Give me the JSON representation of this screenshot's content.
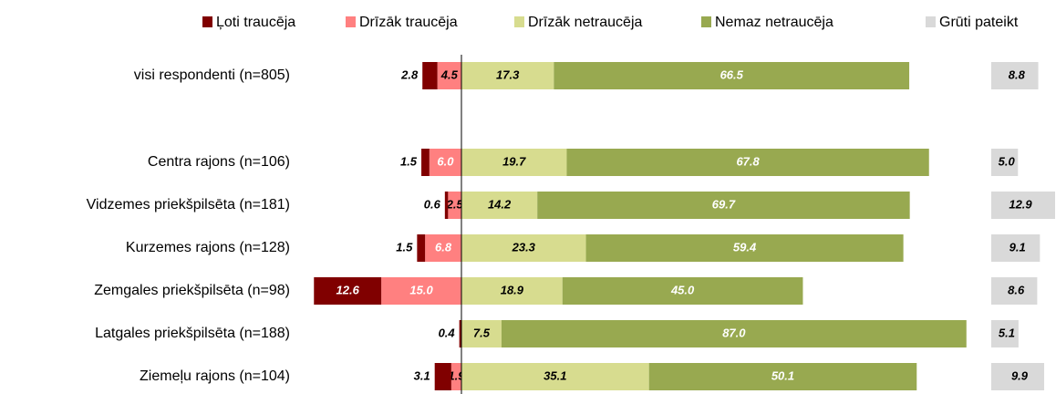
{
  "chart_data": {
    "type": "diverging-bar",
    "categories": [
      "visi respondenti (n=805)",
      "Centra rajons (n=106)",
      "Vidzemes priekšpilsēta (n=181)",
      "Kurzemes rajons (n=128)",
      "Zemgales priekšpilsēta (n=98)",
      "Latgales priekšpilsēta (n=188)",
      "Ziemeļu rajons (n=104)"
    ],
    "series": [
      {
        "name": "Ļoti traucēja",
        "color": "#800000",
        "values": [
          2.8,
          1.5,
          0.6,
          1.5,
          12.6,
          0.4,
          3.1
        ],
        "value_labels": [
          "2.8",
          "1.5",
          "0.6",
          "1.5",
          "12.6",
          "0.4",
          "3.1"
        ]
      },
      {
        "name": "Drīzāk traucēja",
        "color": "#ff8080",
        "values": [
          4.5,
          6.0,
          2.5,
          6.8,
          15.0,
          null,
          1.9
        ],
        "value_labels": [
          "4.5",
          "6.0",
          "2.5",
          "6.8",
          "15.0",
          null,
          "1.9"
        ]
      },
      {
        "name": "Drīzāk netraucēja",
        "color": "#d7dc8f",
        "values": [
          17.3,
          19.7,
          14.2,
          23.3,
          18.9,
          7.5,
          35.1
        ],
        "value_labels": [
          "17.3",
          "19.7",
          "14.2",
          "23.3",
          "18.9",
          "7.5",
          "35.1"
        ]
      },
      {
        "name": "Nemaz netraucēja",
        "color": "#98a950",
        "values": [
          66.5,
          67.8,
          69.7,
          59.4,
          45.0,
          87.0,
          50.1
        ],
        "value_labels": [
          "66.5",
          "67.8",
          "69.7",
          "59.4",
          "45.0",
          "87.0",
          "50.1"
        ]
      },
      {
        "name": "Grūti pateikt",
        "color": "#d9d9d9",
        "values": [
          8.8,
          5.0,
          12.9,
          9.1,
          8.6,
          5.1,
          9.9
        ],
        "value_labels": [
          "8.8",
          "5.0",
          "12.9",
          "9.1",
          "8.6",
          "5.1",
          "9.9"
        ]
      }
    ]
  }
}
